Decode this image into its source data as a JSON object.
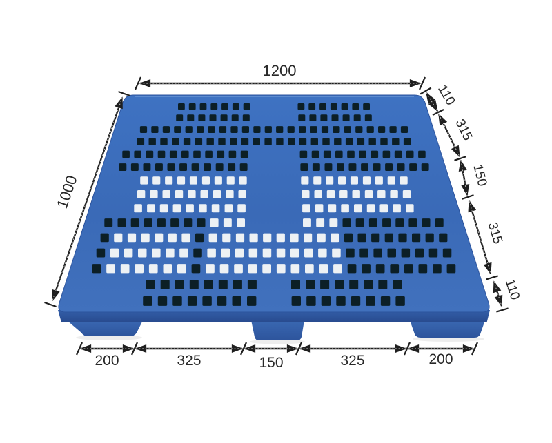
{
  "diagram": {
    "description": "Blue plastic pallet shown in perspective photo with CAD-style dimension annotations"
  },
  "dimensions": {
    "top_width": "1200",
    "left_depth": "1000",
    "right_segments": [
      "110",
      "315",
      "150",
      "315",
      "110"
    ],
    "bottom_segments": [
      "200",
      "325",
      "150",
      "325",
      "200"
    ]
  },
  "colors": {
    "pallet_blue": "#3a6cba",
    "pallet_blue_dark": "#2c539c",
    "hole_dark": "#0c1f26",
    "hole_light": "#edf1f4",
    "dim_line": "#1f1f1f",
    "background": "#ffffff"
  }
}
